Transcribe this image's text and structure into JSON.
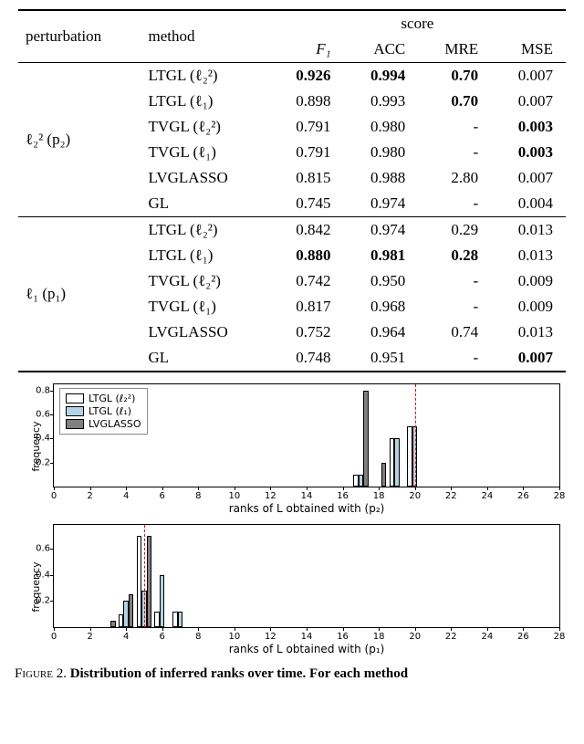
{
  "table": {
    "col_perturbation": "perturbation",
    "col_method": "method",
    "col_score": "score",
    "col_f1": "F₁",
    "col_acc": "ACC",
    "col_mre": "MRE",
    "col_mse": "MSE",
    "group1": {
      "label": "ℓ₂² (p₂)",
      "rows": [
        {
          "method": "LTGL (ℓ₂²)",
          "f1": "0.926",
          "acc": "0.994",
          "mre": "0.70",
          "mse": "0.007",
          "bold": {
            "f1": true,
            "acc": true,
            "mre": true
          }
        },
        {
          "method": "LTGL (ℓ₁)",
          "f1": "0.898",
          "acc": "0.993",
          "mre": "0.70",
          "mse": "0.007",
          "bold": {
            "mre": true
          }
        },
        {
          "method": "TVGL (ℓ₂²)",
          "f1": "0.791",
          "acc": "0.980",
          "mre": "-",
          "mse": "0.003",
          "bold": {
            "mse": true
          }
        },
        {
          "method": "TVGL (ℓ₁)",
          "f1": "0.791",
          "acc": "0.980",
          "mre": "-",
          "mse": "0.003",
          "bold": {
            "mse": true
          }
        },
        {
          "method": "LVGLASSO",
          "f1": "0.815",
          "acc": "0.988",
          "mre": "2.80",
          "mse": "0.007",
          "bold": {}
        },
        {
          "method": "GL",
          "f1": "0.745",
          "acc": "0.974",
          "mre": "-",
          "mse": "0.004",
          "bold": {}
        }
      ]
    },
    "group2": {
      "label": "ℓ₁ (p₁)",
      "rows": [
        {
          "method": "LTGL (ℓ₂²)",
          "f1": "0.842",
          "acc": "0.974",
          "mre": "0.29",
          "mse": "0.013",
          "bold": {}
        },
        {
          "method": "LTGL (ℓ₁)",
          "f1": "0.880",
          "acc": "0.981",
          "mre": "0.28",
          "mse": "0.013",
          "bold": {
            "f1": true,
            "acc": true,
            "mre": true
          }
        },
        {
          "method": "TVGL (ℓ₂²)",
          "f1": "0.742",
          "acc": "0.950",
          "mre": "-",
          "mse": "0.009",
          "bold": {}
        },
        {
          "method": "TVGL (ℓ₁)",
          "f1": "0.817",
          "acc": "0.968",
          "mre": "-",
          "mse": "0.009",
          "bold": {}
        },
        {
          "method": "LVGLASSO",
          "f1": "0.752",
          "acc": "0.964",
          "mre": "0.74",
          "mse": "0.013",
          "bold": {}
        },
        {
          "method": "GL",
          "f1": "0.748",
          "acc": "0.951",
          "mre": "-",
          "mse": "0.007",
          "bold": {
            "mse": true
          }
        }
      ]
    }
  },
  "charts": {
    "colors": {
      "ltgl_l22": "#ffffff",
      "ltgl_l1": "#b0d4e3",
      "lvglasso": "#7f7f7f",
      "border": "#000000",
      "vline": "#ff0000"
    },
    "bar_width": 0.28,
    "xrange": [
      0,
      28
    ],
    "xticks": [
      0,
      2,
      4,
      6,
      8,
      10,
      12,
      14,
      16,
      18,
      20,
      22,
      24,
      26,
      28
    ],
    "chart1": {
      "ylabel": "frequency",
      "xlabel": "ranks of L obtained with (p₂)",
      "ymax": 0.85,
      "yticks": [
        0.2,
        0.4,
        0.6,
        0.8
      ],
      "vline_x": 20,
      "series": {
        "ltgl_l22": [
          {
            "x": 17,
            "y": 0.1
          },
          {
            "x": 19,
            "y": 0.4
          },
          {
            "x": 20,
            "y": 0.5
          }
        ],
        "ltgl_l1": [
          {
            "x": 17,
            "y": 0.1
          },
          {
            "x": 19,
            "y": 0.4
          },
          {
            "x": 20,
            "y": 0.5
          }
        ],
        "lvglasso": [
          {
            "x": 17,
            "y": 0.8
          },
          {
            "x": 18,
            "y": 0.2
          }
        ]
      },
      "legend": {
        "items": [
          {
            "key": "ltgl_l22",
            "label": "LTGL (ℓ₂²)"
          },
          {
            "key": "ltgl_l1",
            "label": "LTGL (ℓ₁)"
          },
          {
            "key": "lvglasso",
            "label": "LVGLASSO"
          }
        ]
      }
    },
    "chart2": {
      "ylabel": "frequency",
      "xlabel": "ranks of L obtained with (p₁)",
      "ymax": 0.78,
      "yticks": [
        0.2,
        0.4,
        0.6
      ],
      "vline_x": 5,
      "series": {
        "ltgl_l22": [
          {
            "x": 4,
            "y": 0.1
          },
          {
            "x": 5,
            "y": 0.7
          },
          {
            "x": 6,
            "y": 0.12
          },
          {
            "x": 7,
            "y": 0.12
          }
        ],
        "ltgl_l1": [
          {
            "x": 4,
            "y": 0.2
          },
          {
            "x": 5,
            "y": 0.28
          },
          {
            "x": 6,
            "y": 0.4
          },
          {
            "x": 7,
            "y": 0.12
          }
        ],
        "lvglasso": [
          {
            "x": 3,
            "y": 0.05
          },
          {
            "x": 4,
            "y": 0.25
          },
          {
            "x": 5,
            "y": 0.7
          }
        ]
      }
    }
  },
  "caption": {
    "label": "Figure 2.",
    "text": "Distribution of inferred ranks over time. For each method"
  }
}
